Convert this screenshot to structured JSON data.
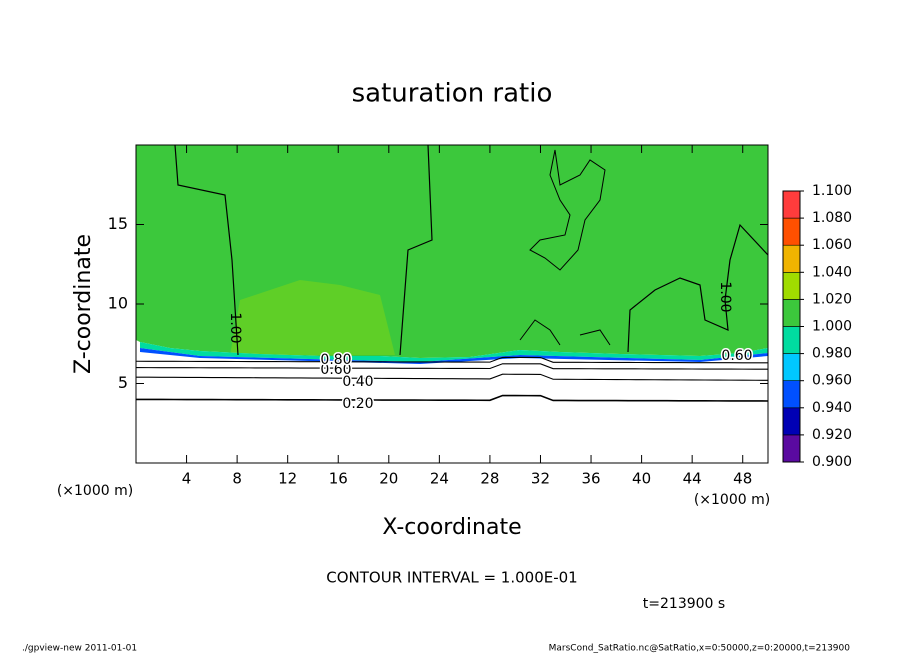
{
  "chart_data": {
    "type": "contour",
    "title": "saturation ratio",
    "x_label": "X-coordinate",
    "y_label": "Z-coordinate",
    "x_unit": "(×1000 m)",
    "y_unit": "(×1000 m)",
    "xlim": [
      0,
      50
    ],
    "ylim": [
      0,
      20
    ],
    "xticks": [
      4,
      8,
      12,
      16,
      20,
      24,
      28,
      32,
      36,
      40,
      44,
      48
    ],
    "yticks": [
      5,
      10,
      15
    ],
    "levels": [
      {
        "value": 0.9,
        "label": "0.900"
      },
      {
        "value": 0.92,
        "label": "0.920"
      },
      {
        "value": 0.94,
        "label": "0.940"
      },
      {
        "value": 0.96,
        "label": "0.960"
      },
      {
        "value": 0.98,
        "label": "0.980"
      },
      {
        "value": 1.0,
        "label": "1.000"
      },
      {
        "value": 1.02,
        "label": "1.020"
      },
      {
        "value": 1.04,
        "label": "1.040"
      },
      {
        "value": 1.06,
        "label": "1.060"
      },
      {
        "value": 1.08,
        "label": "1.080"
      },
      {
        "value": 1.1,
        "label": "1.100"
      }
    ],
    "colors": [
      "#5a0aa0",
      "#0000b4",
      "#0050ff",
      "#00c8ff",
      "#00dca0",
      "#3cc83c",
      "#a0dc00",
      "#f0b400",
      "#ff5000",
      "#ff3c3c",
      "#ff9a9a"
    ],
    "contour_levels": [
      {
        "value": 0.2,
        "label": "0.20"
      },
      {
        "value": 0.4,
        "label": "0.40"
      },
      {
        "value": 0.6,
        "label": "0.60"
      },
      {
        "value": 0.8,
        "label": "0.80"
      },
      {
        "value": 1.0,
        "label": "1.00"
      }
    ],
    "contour_interval": "CONTOUR INTERVAL = 1.000E-01",
    "time": "t=213900 s"
  },
  "footer": {
    "left": "./gpview-new  2011-01-01",
    "right": "MarsCond_SatRatio.nc@SatRatio,x=0:50000,z=0:20000,t=213900"
  }
}
